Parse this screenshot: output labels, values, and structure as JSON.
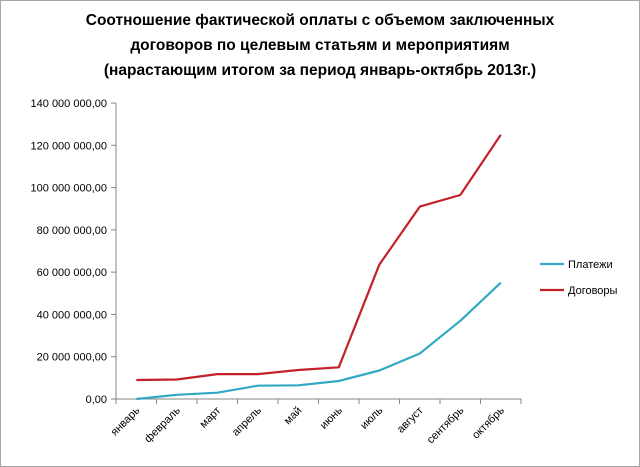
{
  "chart_data": {
    "type": "line",
    "title_lines": [
      "Соотношение фактической оплаты с объемом заключенных",
      "договоров по целевым статьям и мероприятиям",
      "(нарастающим итогом за период январь-октябрь 2013г.)"
    ],
    "categories": [
      "январь",
      "февраль",
      "март",
      "апрель",
      "май",
      "июнь",
      "июль",
      "август",
      "сентябрь",
      "октябрь"
    ],
    "series": [
      {
        "name": "Платежи",
        "color": "#31a9c4",
        "values": [
          0,
          2000000,
          3000000,
          6300000,
          6500000,
          8500000,
          13500000,
          21500000,
          37000000,
          55000000
        ]
      },
      {
        "name": "Договоры",
        "color": "#c4202a",
        "values": [
          9000000,
          9200000,
          11800000,
          11800000,
          13700000,
          15000000,
          63500000,
          91000000,
          96500000,
          125000000
        ]
      }
    ],
    "ylim": [
      0,
      140000000
    ],
    "yticks": [
      0,
      20000000,
      40000000,
      60000000,
      80000000,
      100000000,
      120000000,
      140000000
    ],
    "ytick_labels": [
      "0,00",
      "20 000 000,00",
      "40 000 000,00",
      "60 000 000,00",
      "80 000 000,00",
      "100 000 000,00",
      "120 000 000,00",
      "140 000 000,00"
    ],
    "legend_position": "right",
    "grid": false
  }
}
